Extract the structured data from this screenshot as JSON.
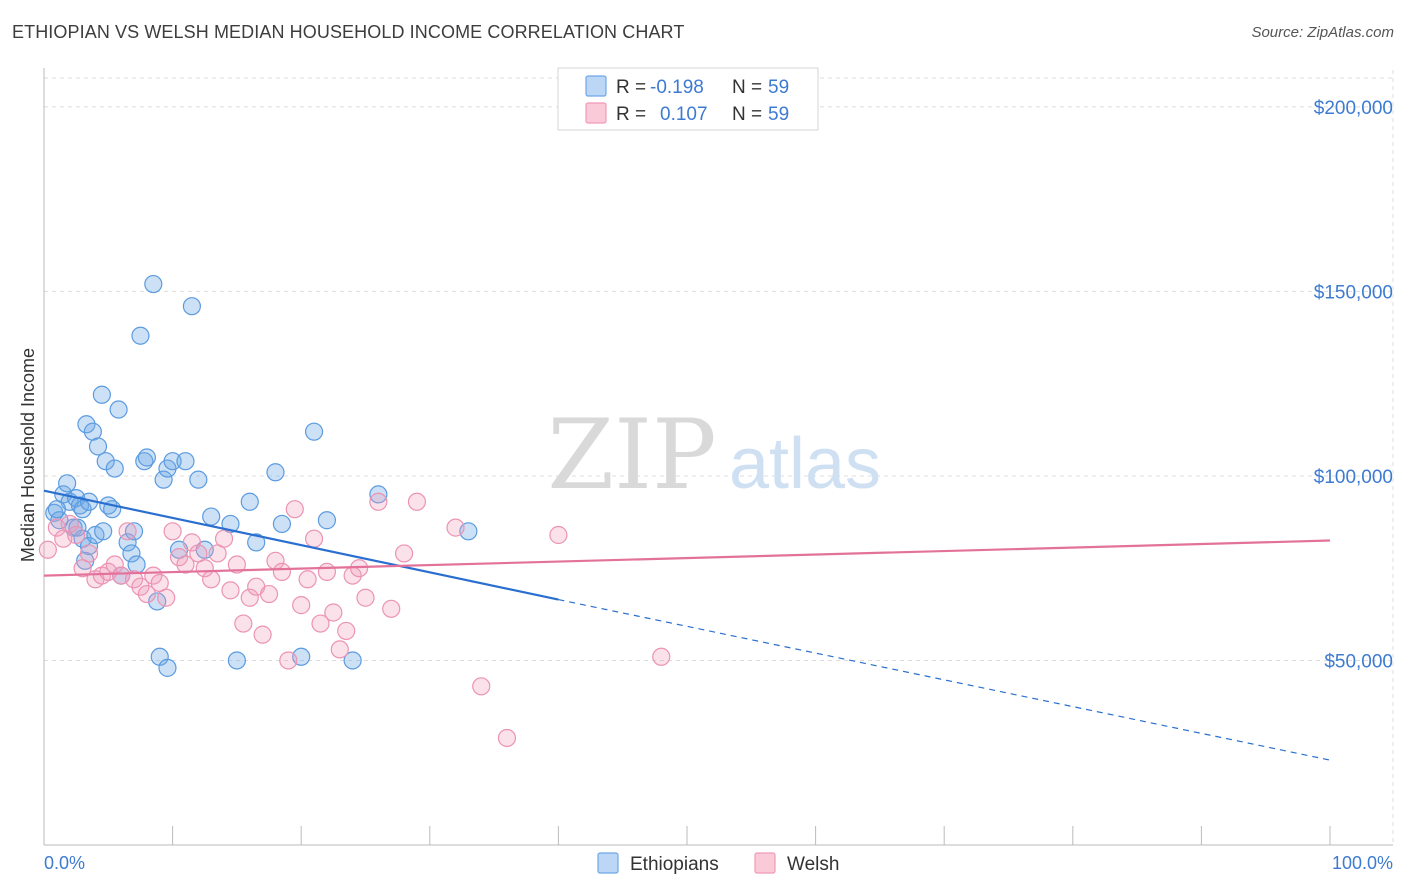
{
  "title": "ETHIOPIAN VS WELSH MEDIAN HOUSEHOLD INCOME CORRELATION CHART",
  "source": "Source: ZipAtlas.com",
  "watermark": {
    "zip": "ZIP",
    "atlas": "atlas"
  },
  "colors": {
    "ethiopians": "#6ea8e6",
    "welsh": "#f09ab8",
    "ethiopians_line": "#2a6fcf",
    "welsh_line": "#e3729a",
    "axis_text": "#3d7bd1"
  },
  "legend_top": {
    "rows": [
      {
        "series": "ethiopians",
        "r_label": "R =",
        "r_value": "-0.198",
        "n_label": "N =",
        "n_value": "59"
      },
      {
        "series": "welsh",
        "r_label": "R =",
        "r_value": "0.107",
        "n_label": "N =",
        "n_value": "59"
      }
    ]
  },
  "legend_bottom": {
    "items": [
      {
        "series": "ethiopians",
        "label": "Ethiopians"
      },
      {
        "series": "welsh",
        "label": "Welsh"
      }
    ]
  },
  "chart_data": {
    "type": "scatter",
    "title": "ETHIOPIAN VS WELSH MEDIAN HOUSEHOLD INCOME CORRELATION CHART",
    "xlabel": "",
    "ylabel": "Median Household Income",
    "xlim": [
      0,
      100
    ],
    "ylim": [
      0,
      210000
    ],
    "x_tick_labels": [
      "0.0%",
      "100.0%"
    ],
    "y_ticks": [
      {
        "value": 50000,
        "label": "$50,000"
      },
      {
        "value": 100000,
        "label": "$100,000"
      },
      {
        "value": 150000,
        "label": "$150,000"
      },
      {
        "value": 200000,
        "label": "$200,000"
      }
    ],
    "series": [
      {
        "name": "Ethiopians",
        "key": "ethiopians",
        "trend": {
          "x0": 0,
          "y0": 96000,
          "x1": 40,
          "y1": 66500,
          "dash_to_x": 100,
          "dash_to_y": 23000
        },
        "points": [
          [
            0.8,
            90000
          ],
          [
            1.2,
            88000
          ],
          [
            1.5,
            95000
          ],
          [
            1.8,
            98000
          ],
          [
            2.0,
            93000
          ],
          [
            2.3,
            86000
          ],
          [
            2.5,
            94000
          ],
          [
            2.8,
            92000
          ],
          [
            3.0,
            91000
          ],
          [
            3.3,
            114000
          ],
          [
            3.5,
            93000
          ],
          [
            3.8,
            112000
          ],
          [
            3.0,
            83000
          ],
          [
            3.2,
            77000
          ],
          [
            3.5,
            81000
          ],
          [
            4.0,
            84000
          ],
          [
            4.2,
            108000
          ],
          [
            4.5,
            122000
          ],
          [
            4.8,
            104000
          ],
          [
            5.0,
            92000
          ],
          [
            5.5,
            102000
          ],
          [
            5.8,
            118000
          ],
          [
            6.0,
            73000
          ],
          [
            6.5,
            82000
          ],
          [
            6.8,
            79000
          ],
          [
            7.2,
            76000
          ],
          [
            7.5,
            138000
          ],
          [
            7.8,
            104000
          ],
          [
            8.0,
            105000
          ],
          [
            8.5,
            152000
          ],
          [
            8.8,
            66000
          ],
          [
            9.0,
            51000
          ],
          [
            9.3,
            99000
          ],
          [
            9.6,
            102000
          ],
          [
            10.0,
            104000
          ],
          [
            10.5,
            80000
          ],
          [
            11.0,
            104000
          ],
          [
            11.5,
            146000
          ],
          [
            12.0,
            99000
          ],
          [
            12.5,
            80000
          ],
          [
            13.0,
            89000
          ],
          [
            14.5,
            87000
          ],
          [
            15.0,
            50000
          ],
          [
            16.0,
            93000
          ],
          [
            16.5,
            82000
          ],
          [
            18.0,
            101000
          ],
          [
            18.5,
            87000
          ],
          [
            20.0,
            51000
          ],
          [
            21.0,
            112000
          ],
          [
            22.0,
            88000
          ],
          [
            24.0,
            50000
          ],
          [
            26.0,
            95000
          ],
          [
            33.0,
            85000
          ],
          [
            1.0,
            91000
          ],
          [
            2.6,
            86000
          ],
          [
            4.6,
            85000
          ],
          [
            5.3,
            91000
          ],
          [
            7.0,
            85000
          ],
          [
            9.6,
            48000
          ]
        ]
      },
      {
        "name": "Welsh",
        "key": "welsh",
        "trend": {
          "x0": 0,
          "y0": 73000,
          "x1": 100,
          "y1": 82500
        },
        "points": [
          [
            0.3,
            80000
          ],
          [
            1.0,
            86000
          ],
          [
            1.5,
            83000
          ],
          [
            2.0,
            87000
          ],
          [
            2.5,
            84000
          ],
          [
            3.0,
            75000
          ],
          [
            3.5,
            79000
          ],
          [
            4.0,
            72000
          ],
          [
            4.5,
            73000
          ],
          [
            5.0,
            74000
          ],
          [
            5.5,
            76000
          ],
          [
            6.0,
            73000
          ],
          [
            6.5,
            85000
          ],
          [
            7.0,
            72000
          ],
          [
            7.5,
            70000
          ],
          [
            8.0,
            68000
          ],
          [
            8.5,
            73000
          ],
          [
            9.0,
            71000
          ],
          [
            9.5,
            67000
          ],
          [
            10.0,
            85000
          ],
          [
            10.5,
            78000
          ],
          [
            11.0,
            76000
          ],
          [
            11.5,
            82000
          ],
          [
            12.0,
            79000
          ],
          [
            12.5,
            75000
          ],
          [
            13.0,
            72000
          ],
          [
            13.5,
            79000
          ],
          [
            14.0,
            83000
          ],
          [
            14.5,
            69000
          ],
          [
            15.0,
            76000
          ],
          [
            15.5,
            60000
          ],
          [
            16.0,
            67000
          ],
          [
            16.5,
            70000
          ],
          [
            17.0,
            57000
          ],
          [
            17.5,
            68000
          ],
          [
            18.0,
            77000
          ],
          [
            18.5,
            74000
          ],
          [
            19.0,
            50000
          ],
          [
            19.5,
            91000
          ],
          [
            20.0,
            65000
          ],
          [
            20.5,
            72000
          ],
          [
            21.0,
            83000
          ],
          [
            21.5,
            60000
          ],
          [
            22.0,
            74000
          ],
          [
            22.5,
            63000
          ],
          [
            23.0,
            53000
          ],
          [
            23.5,
            58000
          ],
          [
            24.0,
            73000
          ],
          [
            24.5,
            75000
          ],
          [
            25.0,
            67000
          ],
          [
            26.0,
            93000
          ],
          [
            27.0,
            64000
          ],
          [
            28.0,
            79000
          ],
          [
            29.0,
            93000
          ],
          [
            32.0,
            86000
          ],
          [
            34.0,
            43000
          ],
          [
            36.0,
            29000
          ],
          [
            40.0,
            84000
          ],
          [
            48.0,
            51000
          ]
        ]
      }
    ]
  }
}
